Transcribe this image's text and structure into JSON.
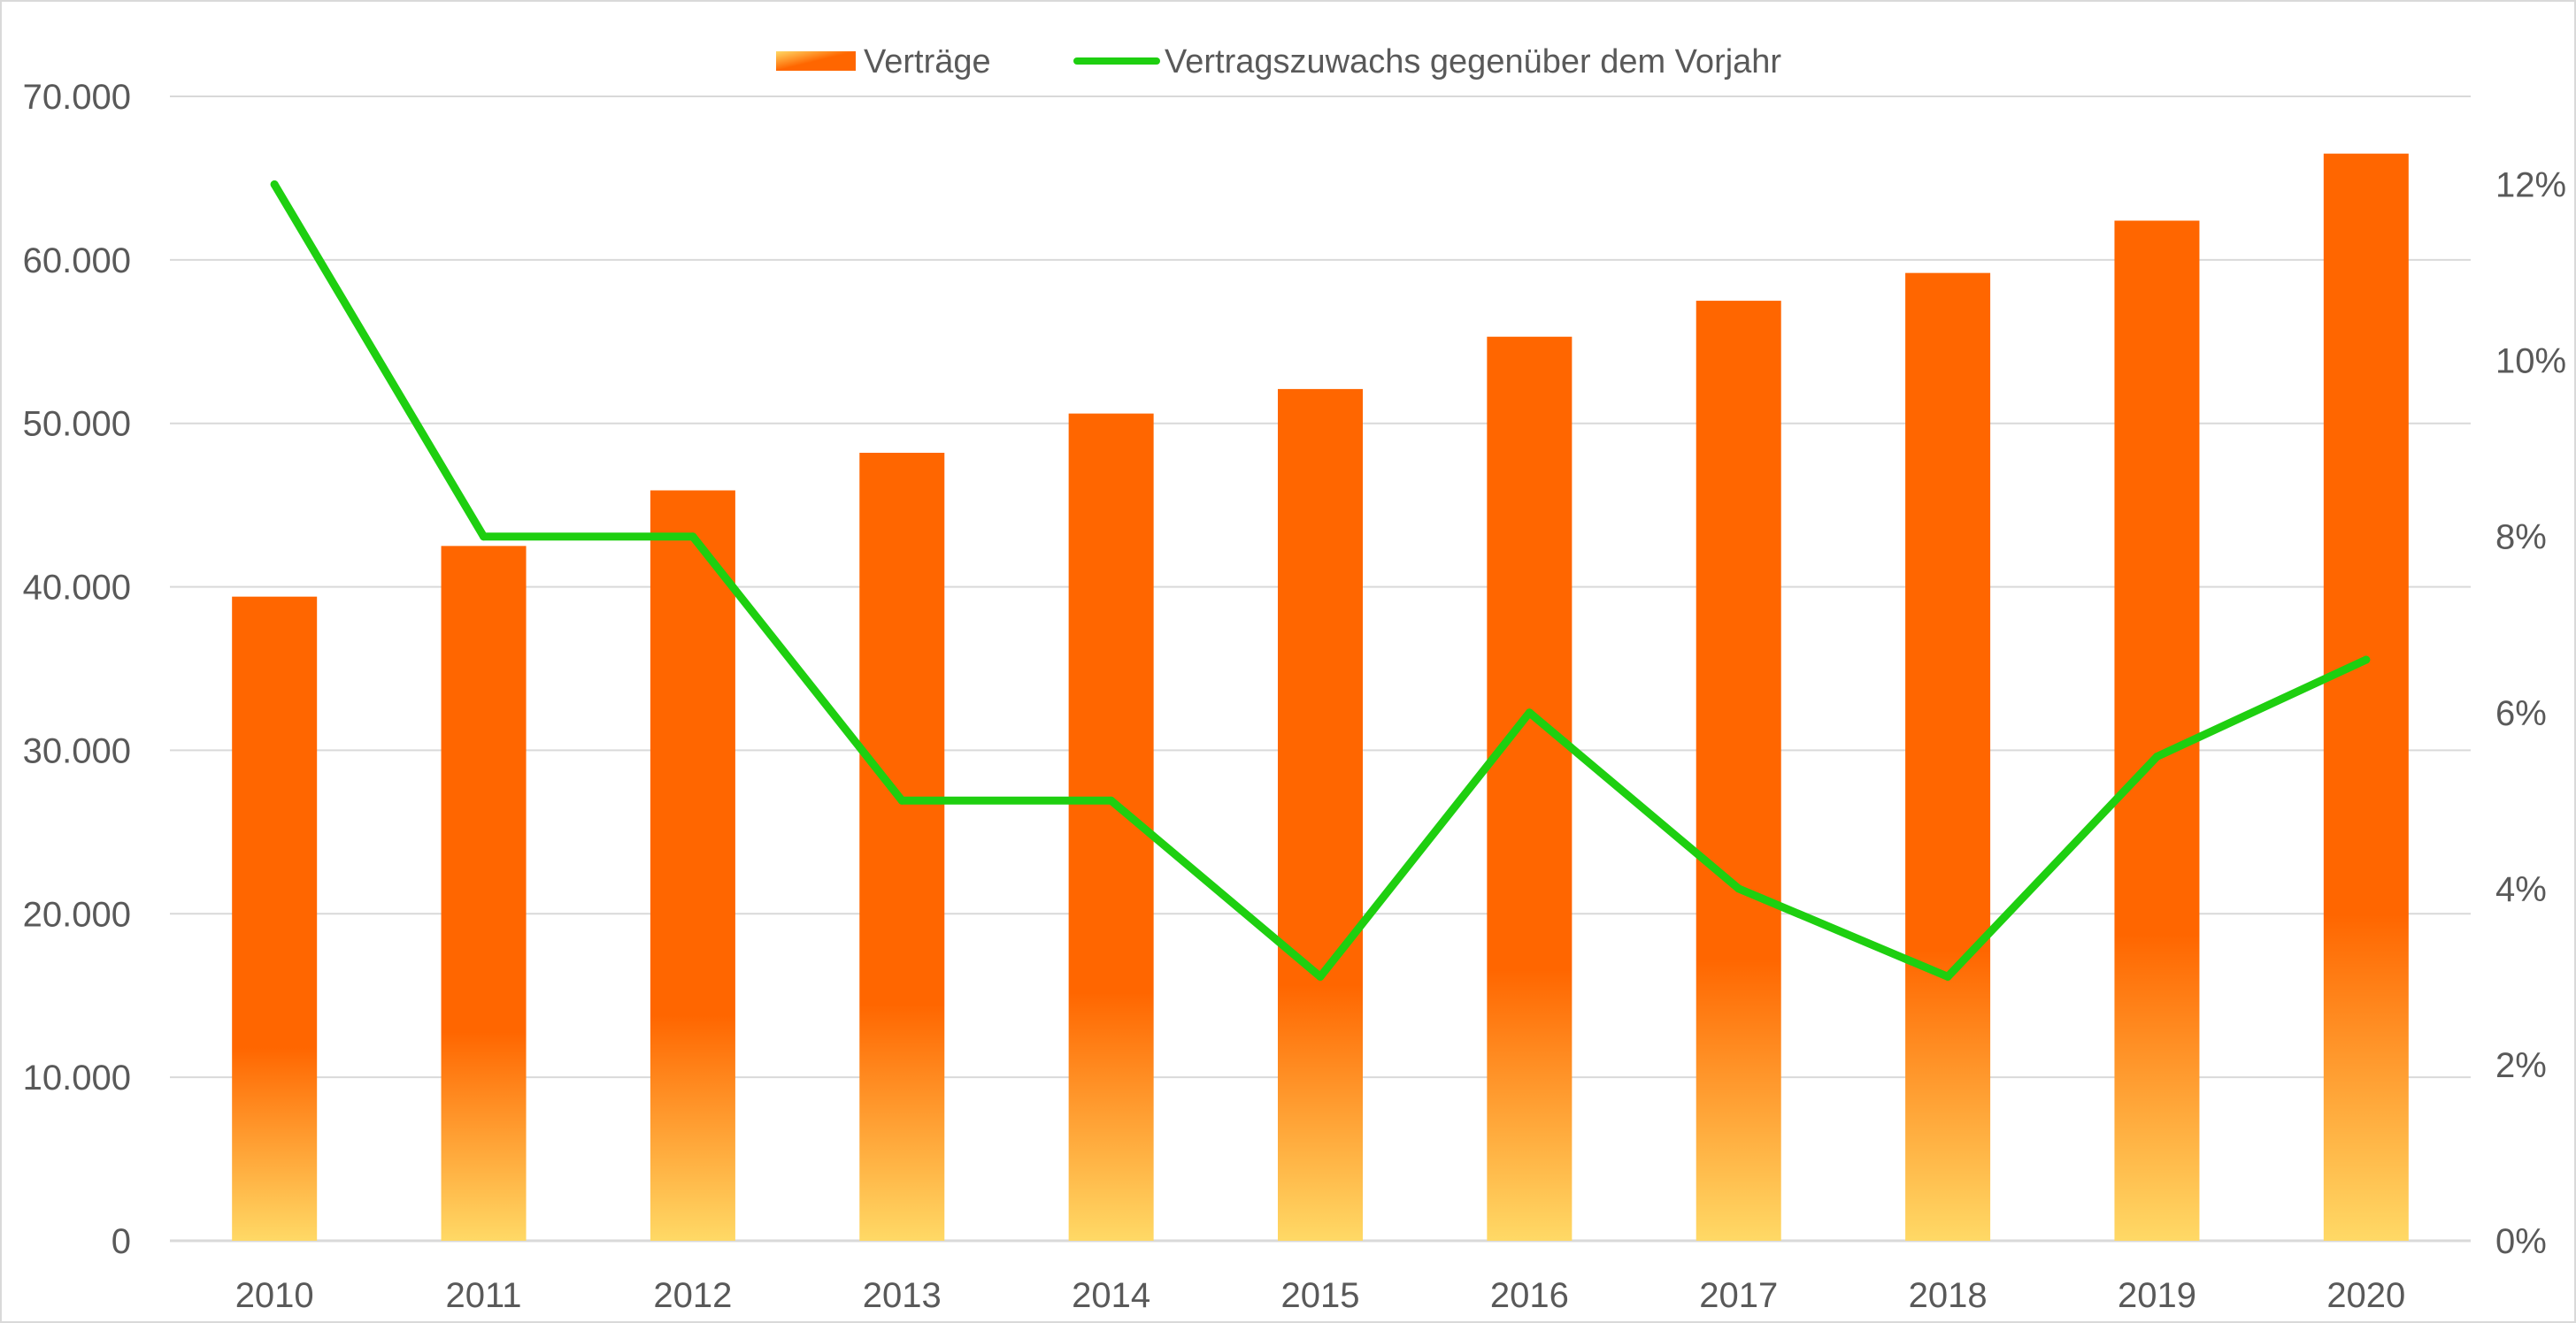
{
  "chart_data": {
    "type": "bar",
    "categories": [
      "2010",
      "2011",
      "2012",
      "2013",
      "2014",
      "2015",
      "2016",
      "2017",
      "2018",
      "2019",
      "2020"
    ],
    "series": [
      {
        "name": "Verträge",
        "type": "bar",
        "axis": "left",
        "values": [
          39400,
          42500,
          45900,
          48200,
          50600,
          52100,
          55300,
          57500,
          59200,
          62400,
          66500
        ]
      },
      {
        "name": "Vertragszuwachs gegenüber dem Vorjahr",
        "type": "line",
        "axis": "right",
        "values": [
          12.0,
          8.0,
          8.0,
          5.0,
          5.0,
          3.0,
          6.0,
          4.0,
          3.0,
          5.5,
          6.6
        ]
      }
    ],
    "y_left": {
      "min": 0,
      "max": 70000,
      "ticks": [
        0,
        10000,
        20000,
        30000,
        40000,
        50000,
        60000,
        70000
      ],
      "tick_labels": [
        "0",
        "10.000",
        "20.000",
        "30.000",
        "40.000",
        "50.000",
        "60.000",
        "70.000"
      ]
    },
    "y_right": {
      "min": 0,
      "max": 13,
      "ticks": [
        0,
        2,
        4,
        6,
        8,
        10,
        12
      ],
      "tick_labels": [
        "0%",
        "2%",
        "4%",
        "6%",
        "8%",
        "10%",
        "12%"
      ]
    },
    "grid": true,
    "legend": {
      "position": "top-center",
      "labels": [
        "Verträge",
        "Vertragszuwachs gegenüber dem Vorjahr"
      ]
    },
    "colors": {
      "bar_top": "#ff6600",
      "bar_bottom": "#ffd966",
      "line": "#1ecf10",
      "grid": "#d9d9d9",
      "text": "#595959"
    }
  }
}
